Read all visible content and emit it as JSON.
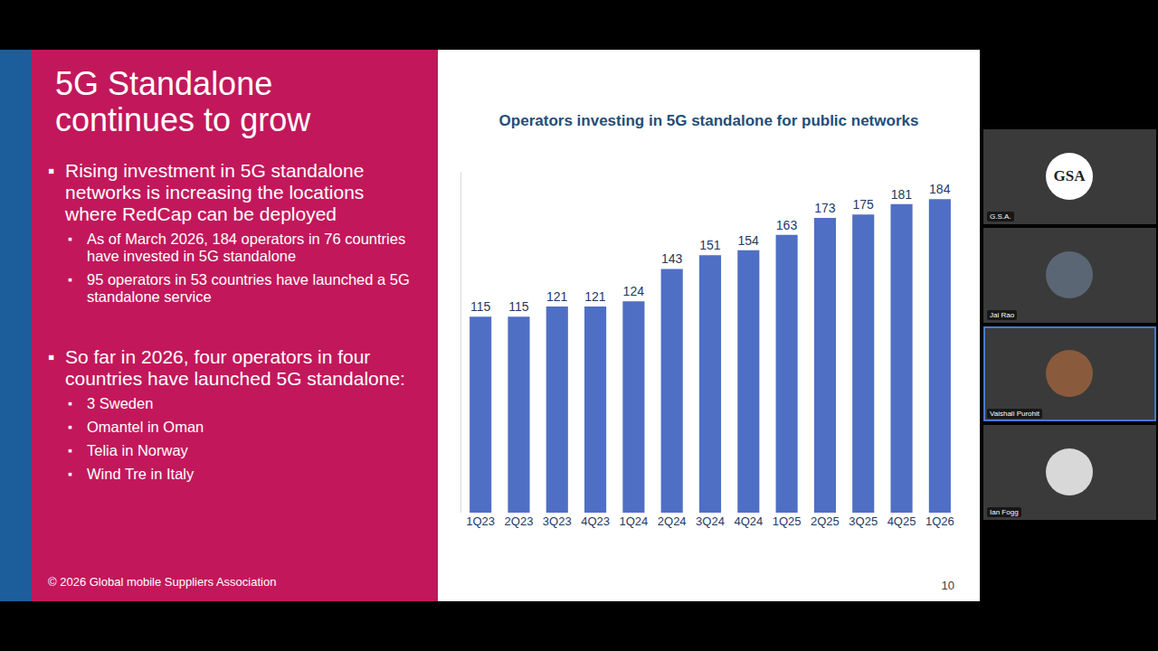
{
  "slide": {
    "title": "5G Standalone continues to grow",
    "bullets": [
      {
        "text": "Rising investment in 5G standalone networks is increasing the locations where RedCap can be deployed",
        "sub": [
          "As of March 2026, 184 operators in 76 countries have invested in 5G standalone",
          "95 operators in 53 countries have launched a 5G standalone service"
        ]
      },
      {
        "text": "So far in 2026, four operators in four countries have launched 5G standalone:",
        "sub": [
          "3 Sweden",
          "Omantel in Oman",
          "Telia in Norway",
          "Wind Tre in Italy"
        ]
      }
    ],
    "footer": "© 2026 Global mobile Suppliers Association",
    "page": 10
  },
  "chart_data": {
    "type": "bar",
    "title": "Operators investing in 5G standalone for public networks",
    "categories": [
      "1Q23",
      "2Q23",
      "3Q23",
      "4Q23",
      "1Q24",
      "2Q24",
      "3Q24",
      "4Q24",
      "1Q25",
      "2Q25",
      "3Q25",
      "4Q25",
      "1Q26"
    ],
    "values": [
      115,
      115,
      121,
      121,
      124,
      143,
      151,
      154,
      163,
      173,
      175,
      181,
      184
    ],
    "color": "#4f6fc4",
    "ylim": [
      0,
      200
    ],
    "yticks": [],
    "grid": false,
    "data_labels": true,
    "tick_labels": "x"
  },
  "participants": [
    {
      "name": "G.S.A.",
      "logo": "GSA"
    },
    {
      "name": "Jai Rao"
    },
    {
      "name": "Vaishali Purohit"
    },
    {
      "name": "Ian Fogg"
    }
  ]
}
